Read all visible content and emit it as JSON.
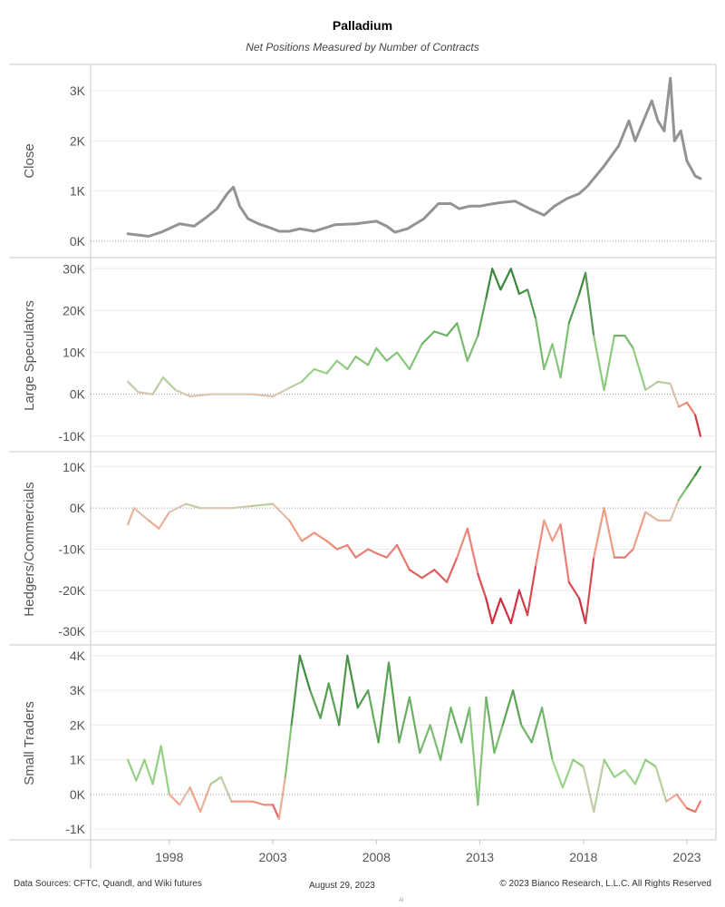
{
  "header": {
    "title": "Palladium",
    "subtitle": "Net Positions Measured by Number of Contracts"
  },
  "footer": {
    "sources": "Data Sources: CFTC, Quandl, and Wiki futures",
    "date": "August 29, 2023",
    "copyright": "© 2023 Bianco Research, L.L.C. All Rights Reserved",
    "mark": "Al"
  },
  "chart_data": [
    {
      "type": "line",
      "title": "",
      "ylabel": "Close",
      "ylim": [
        -180,
        3380
      ],
      "yticks": [
        0,
        1000,
        2000,
        3000
      ],
      "ytick_labels": [
        "0K",
        "1K",
        "2K",
        "3K"
      ],
      "zero_line": true,
      "color_mode": "solid",
      "color": "#939393",
      "x": [
        1996.0,
        1997.0,
        1997.6,
        1998.5,
        1999.2,
        1999.8,
        2000.3,
        2000.8,
        2001.1,
        2001.4,
        2001.8,
        2002.3,
        2003.0,
        2003.3,
        2003.8,
        2004.3,
        2005.0,
        2006.0,
        2007.0,
        2008.0,
        2008.5,
        2008.9,
        2009.5,
        2010.3,
        2011.0,
        2011.6,
        2012.0,
        2012.5,
        2013.0,
        2013.5,
        2014.0,
        2014.7,
        2015.4,
        2016.1,
        2016.6,
        2017.2,
        2017.8,
        2018.2,
        2019.0,
        2019.7,
        2020.2,
        2020.5,
        2020.9,
        2021.3,
        2021.6,
        2021.9,
        2022.2,
        2022.4,
        2022.7,
        2023.0,
        2023.4,
        2023.65
      ],
      "y": [
        150,
        100,
        180,
        350,
        300,
        480,
        650,
        950,
        1080,
        700,
        450,
        350,
        250,
        200,
        200,
        250,
        200,
        330,
        350,
        400,
        300,
        180,
        250,
        450,
        750,
        750,
        650,
        700,
        700,
        740,
        770,
        800,
        650,
        520,
        700,
        850,
        950,
        1100,
        1500,
        1900,
        2400,
        2000,
        2400,
        2800,
        2400,
        2200,
        3250,
        2000,
        2200,
        1600,
        1300,
        1250
      ]
    },
    {
      "type": "line",
      "title": "",
      "ylabel": "Large Speculators",
      "ylim": [
        -12000,
        30500
      ],
      "yticks": [
        -10000,
        0,
        10000,
        20000,
        30000
      ],
      "ytick_labels": [
        "-10K",
        "0K",
        "10K",
        "20K",
        "30K"
      ],
      "zero_line": true,
      "color_mode": "diverging",
      "color_min": -10000,
      "color_max": 30000,
      "x": [
        1996.0,
        1996.5,
        1997.2,
        1997.7,
        1998.3,
        1999.0,
        2000.0,
        2001.0,
        2002.0,
        2003.0,
        2003.8,
        2004.4,
        2005.0,
        2005.6,
        2006.1,
        2006.6,
        2007.0,
        2007.6,
        2008.0,
        2008.5,
        2009.0,
        2009.6,
        2010.2,
        2010.8,
        2011.4,
        2011.9,
        2012.4,
        2012.9,
        2013.3,
        2013.6,
        2014.0,
        2014.5,
        2014.9,
        2015.3,
        2015.7,
        2016.1,
        2016.5,
        2016.9,
        2017.3,
        2017.8,
        2018.1,
        2018.5,
        2019.0,
        2019.5,
        2020.0,
        2020.4,
        2021.0,
        2021.6,
        2022.2,
        2022.6,
        2023.0,
        2023.4,
        2023.65
      ],
      "y": [
        3000,
        500,
        0,
        4000,
        1000,
        -500,
        0,
        0,
        0,
        -500,
        1500,
        3000,
        6000,
        5000,
        8000,
        6000,
        9000,
        7000,
        11000,
        8000,
        10000,
        6000,
        12000,
        15000,
        14000,
        17000,
        8000,
        14000,
        23000,
        30000,
        25000,
        30000,
        24000,
        25000,
        18000,
        6000,
        12000,
        4000,
        17000,
        24000,
        29000,
        14000,
        1000,
        14000,
        14000,
        11000,
        1000,
        3000,
        2500,
        -3000,
        -2000,
        -5000,
        -10000
      ]
    },
    {
      "type": "line",
      "title": "",
      "ylabel": "Hedgers/Commercials",
      "ylim": [
        -31500,
        11500
      ],
      "yticks": [
        -30000,
        -20000,
        -10000,
        0,
        10000
      ],
      "ytick_labels": [
        "-30K",
        "-20K",
        "-10K",
        "0K",
        "10K"
      ],
      "zero_line": true,
      "color_mode": "diverging",
      "color_min": -30000,
      "color_max": 10000,
      "x": [
        1996.0,
        1996.3,
        1997.0,
        1997.5,
        1998.0,
        1998.8,
        1999.5,
        2000.3,
        2001.0,
        2002.0,
        2003.0,
        2003.8,
        2004.4,
        2005.0,
        2005.6,
        2006.1,
        2006.6,
        2007.0,
        2007.6,
        2008.0,
        2008.5,
        2009.0,
        2009.6,
        2010.2,
        2010.8,
        2011.4,
        2011.9,
        2012.4,
        2012.9,
        2013.3,
        2013.6,
        2014.0,
        2014.5,
        2014.9,
        2015.3,
        2015.7,
        2016.1,
        2016.5,
        2016.9,
        2017.3,
        2017.8,
        2018.1,
        2018.5,
        2019.0,
        2019.5,
        2020.0,
        2020.4,
        2021.0,
        2021.6,
        2022.2,
        2022.6,
        2023.0,
        2023.4,
        2023.65
      ],
      "y": [
        -4000,
        0,
        -3000,
        -5000,
        -1000,
        1000,
        0,
        0,
        0,
        500,
        1000,
        -3000,
        -8000,
        -6000,
        -8000,
        -10000,
        -9000,
        -12000,
        -10000,
        -11000,
        -12000,
        -9000,
        -15000,
        -17000,
        -15000,
        -18000,
        -12000,
        -5000,
        -16000,
        -22000,
        -28000,
        -22000,
        -28000,
        -20000,
        -26000,
        -14000,
        -3000,
        -8000,
        -4000,
        -18000,
        -22000,
        -28000,
        -12000,
        0,
        -12000,
        -12000,
        -10000,
        -1000,
        -3000,
        -3000,
        2000,
        5000,
        8000,
        10000
      ]
    },
    {
      "type": "line",
      "title": "",
      "ylabel": "Small Traders",
      "ylim": [
        -1100,
        4050
      ],
      "yticks": [
        -1000,
        0,
        1000,
        2000,
        3000,
        4000
      ],
      "ytick_labels": [
        "-1K",
        "0K",
        "1K",
        "2K",
        "3K",
        "4K"
      ],
      "zero_line": true,
      "color_mode": "diverging",
      "color_min": -1000,
      "color_max": 4000,
      "x": [
        1996.0,
        1996.4,
        1996.8,
        1997.2,
        1997.6,
        1998.0,
        1998.5,
        1999.0,
        1999.5,
        2000.0,
        2000.5,
        2001.0,
        2001.5,
        2002.0,
        2002.6,
        2003.0,
        2003.3,
        2003.6,
        2003.9,
        2004.3,
        2004.8,
        2005.3,
        2005.7,
        2006.2,
        2006.6,
        2007.1,
        2007.6,
        2008.1,
        2008.6,
        2009.1,
        2009.6,
        2010.1,
        2010.6,
        2011.1,
        2011.6,
        2012.1,
        2012.5,
        2012.9,
        2013.3,
        2013.7,
        2014.1,
        2014.6,
        2015.0,
        2015.5,
        2016.0,
        2016.5,
        2017.0,
        2017.5,
        2018.0,
        2018.5,
        2019.0,
        2019.5,
        2020.0,
        2020.5,
        2021.0,
        2021.5,
        2022.0,
        2022.5,
        2023.0,
        2023.4,
        2023.65
      ],
      "y": [
        1000,
        400,
        1000,
        300,
        1400,
        0,
        -300,
        200,
        -500,
        300,
        500,
        -200,
        -200,
        -200,
        -300,
        -300,
        -700,
        500,
        2000,
        4000,
        3000,
        2200,
        3200,
        2000,
        4000,
        2500,
        3000,
        1500,
        3800,
        1500,
        2800,
        1200,
        2000,
        1000,
        2500,
        1500,
        2500,
        -300,
        2800,
        1200,
        2000,
        3000,
        2000,
        1500,
        2500,
        1000,
        200,
        1000,
        800,
        -500,
        1000,
        500,
        700,
        300,
        1000,
        800,
        -200,
        0,
        -400,
        -500,
        -200
      ]
    }
  ],
  "x_axis": {
    "range": [
      1994.2,
      2024.4
    ],
    "ticks": [
      1998,
      2003,
      2008,
      2013,
      2018,
      2023
    ],
    "tick_labels": [
      "1998",
      "2003",
      "2008",
      "2013",
      "2018",
      "2023"
    ]
  },
  "colors": {
    "negative_strong": "#c8102e",
    "negative_light": "#f4a38a",
    "neutral": "#d8c8b6",
    "positive_light": "#98d488",
    "positive_strong": "#2e7d32",
    "close_line": "#939393",
    "gridline": "#ececec",
    "border": "#c8c8c8",
    "zero_line": "#9a9a9a"
  }
}
